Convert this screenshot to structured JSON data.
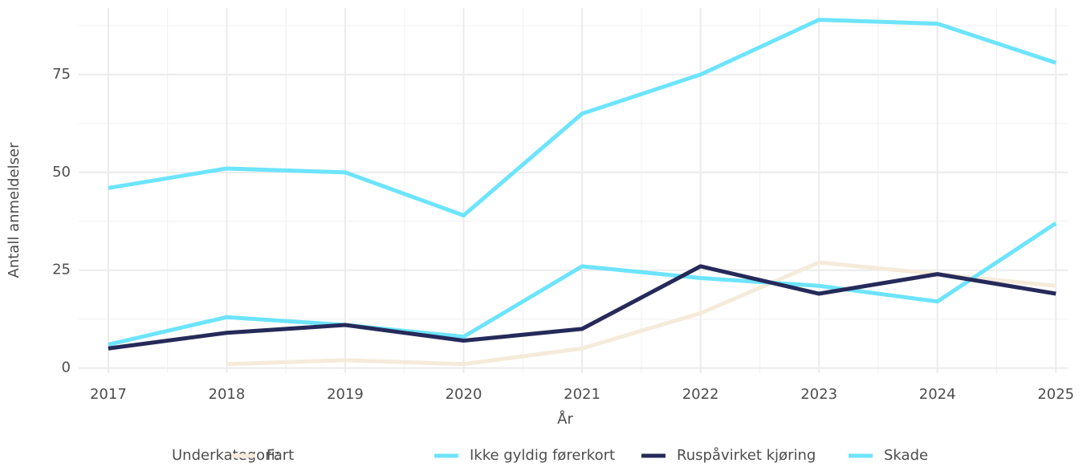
{
  "chart_data": {
    "type": "line",
    "x_label": "År",
    "y_label": "Antall anmeldelser",
    "legend_title": "Underkategori:",
    "legend_position": "bottom",
    "x": [
      2017,
      2018,
      2019,
      2020,
      2021,
      2022,
      2023,
      2024,
      2025
    ],
    "xlim": [
      2016.75,
      2025.1
    ],
    "xticks": [
      2017,
      2018,
      2019,
      2020,
      2021,
      2022,
      2023,
      2024,
      2025
    ],
    "ylim": [
      -1.3,
      92
    ],
    "yticks": [
      0,
      25,
      50,
      75
    ],
    "grid": true,
    "series": [
      {
        "name": "Fart",
        "color": "#f5ebda",
        "values": [
          null,
          1,
          2,
          1,
          5,
          14,
          27,
          24,
          21
        ]
      },
      {
        "name": "Ikke gyldig førerkort",
        "color": "#6de4fd",
        "values": [
          6,
          13,
          11,
          8,
          26,
          23,
          21,
          17,
          37
        ]
      },
      {
        "name": "Ruspåvirket kjøring",
        "color": "#262a5a",
        "values": [
          5,
          9,
          11,
          7,
          10,
          26,
          19,
          24,
          19
        ]
      },
      {
        "name": "Skade",
        "color": "#6de4fd",
        "values": [
          46,
          51,
          50,
          39,
          65,
          75,
          89,
          88,
          78
        ]
      }
    ]
  }
}
